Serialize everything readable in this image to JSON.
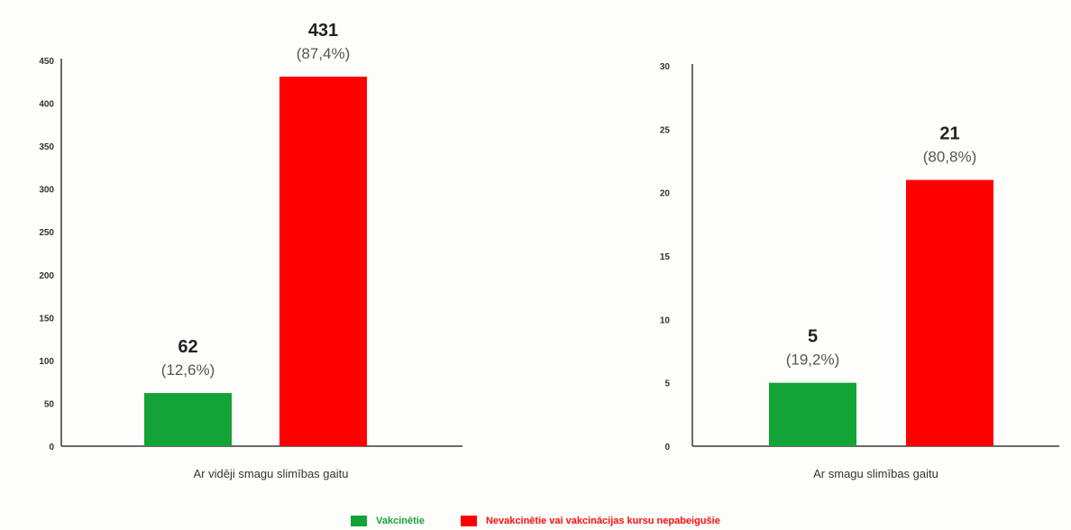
{
  "chart_data": [
    {
      "type": "bar",
      "xlabel": "Ar vidēji smagu slimības gaitu",
      "ylim": [
        0,
        450
      ],
      "yticks": [
        0,
        50,
        100,
        150,
        200,
        250,
        300,
        350,
        400,
        450
      ],
      "bars": [
        {
          "series": "Vakcinētie",
          "value": 62,
          "value_label": "62",
          "pct_label": "(12,6%)",
          "color": "#13a336"
        },
        {
          "series": "Nevakcinētie vai vakcinācijas kursu nepabeigušie",
          "value": 431,
          "value_label": "431",
          "pct_label": "(87,4%)",
          "color": "#ff0000"
        }
      ],
      "grid": false
    },
    {
      "type": "bar",
      "xlabel": "Ar smagu slimības gaitu",
      "ylim": [
        0,
        30
      ],
      "yticks": [
        0,
        5,
        10,
        15,
        20,
        25,
        30
      ],
      "bars": [
        {
          "series": "Vakcinētie",
          "value": 5,
          "value_label": "5",
          "pct_label": "(19,2%)",
          "color": "#13a336"
        },
        {
          "series": "Nevakcinētie vai vakcinācijas kursu nepabeigušie",
          "value": 21,
          "value_label": "21",
          "pct_label": "(80,8%)",
          "color": "#ff0000"
        }
      ],
      "grid": false
    }
  ],
  "legend": {
    "position": "bottom",
    "items": [
      {
        "label": "Vakcinētie",
        "color": "#13a336"
      },
      {
        "label": "Nevakcinētie vai vakcinācijas kursu nepabeigušie",
        "color": "#ff0000"
      }
    ]
  }
}
